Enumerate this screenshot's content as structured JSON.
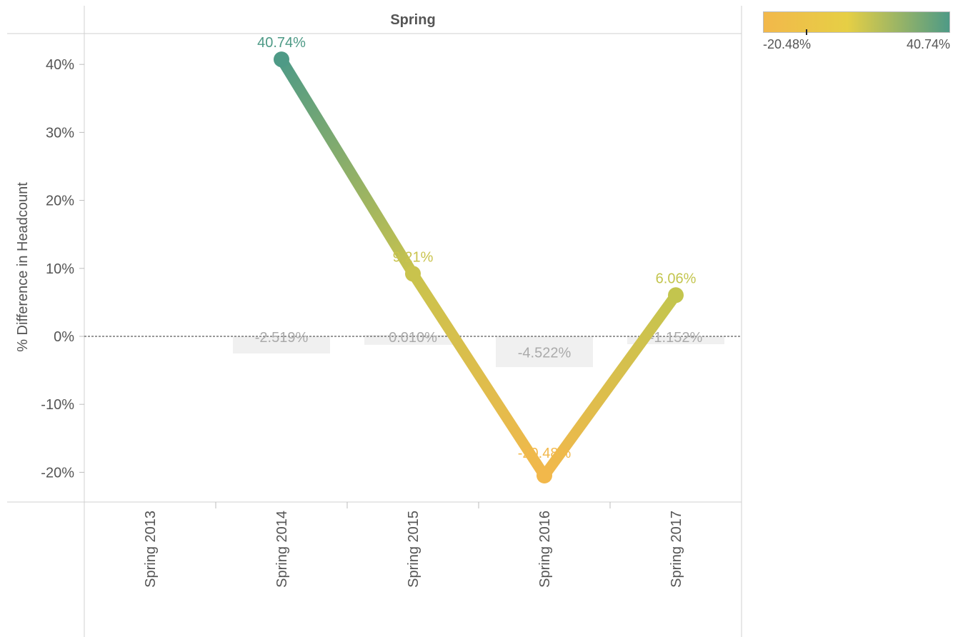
{
  "legend": {
    "min_label": "-20.48%",
    "max_label": "40.74%",
    "marker_value": -6.32,
    "colors": [
      "#f2b84b",
      "#e6cf45",
      "#4e9a86"
    ]
  },
  "chart_data": {
    "type": "line",
    "title": "Spring",
    "xlabel": "",
    "ylabel": "% Difference in Headcount",
    "ylim": [
      -24.5,
      45
    ],
    "yticks": [
      -20,
      -10,
      0,
      10,
      20,
      30,
      40
    ],
    "ytick_labels": [
      "-20%",
      "-10%",
      "0%",
      "10%",
      "20%",
      "30%",
      "40%"
    ],
    "categories": [
      "Spring 2013",
      "Spring 2014",
      "Spring 2015",
      "Spring 2016",
      "Spring 2017"
    ],
    "series": [
      {
        "values": [
          null,
          40.74,
          9.21,
          -20.48,
          6.06
        ],
        "labels": [
          "",
          "40.74%",
          "9.21%",
          "-20.48%",
          "6.06%"
        ],
        "colors": [
          null,
          "#4e9a86",
          "#c9c34d",
          "#f2b84b",
          "#c3c54e"
        ]
      }
    ],
    "reference_line": {
      "value": 0,
      "style": "dashed"
    },
    "reference_labels": [
      {
        "category": "Spring 2014",
        "value": -2.519,
        "label": "-2.519%"
      },
      {
        "category": "Spring 2015",
        "value": 0.01,
        "label": "0.010%"
      },
      {
        "category": "Spring 2016",
        "value": -4.522,
        "label": "-4.522%"
      },
      {
        "category": "Spring 2017",
        "value": -1.152,
        "label": "-1.152%"
      }
    ],
    "legend_position": "top-right",
    "grid": false
  }
}
